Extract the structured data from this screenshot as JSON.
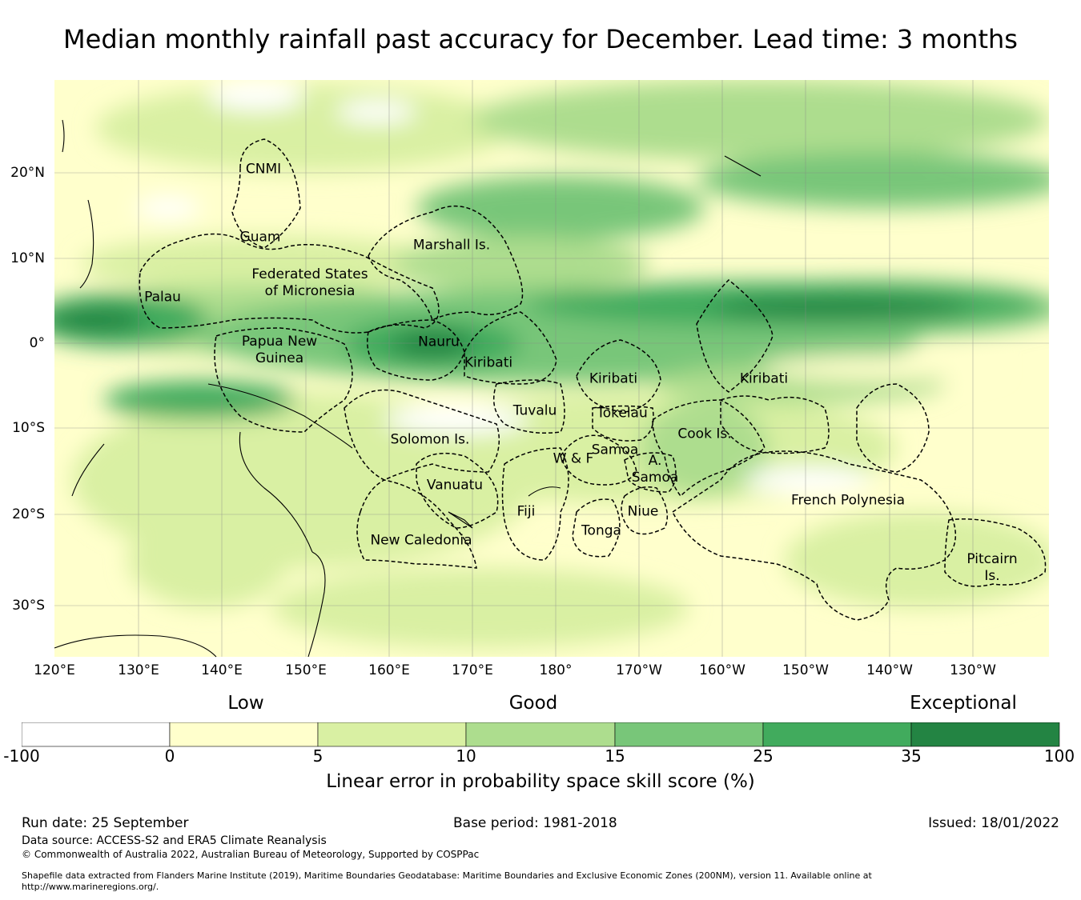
{
  "title": "Median monthly rainfall past accuracy for December. Lead time: 3 months",
  "map": {
    "longitude_labels": [
      "120°E",
      "130°E",
      "140°E",
      "150°E",
      "160°E",
      "170°E",
      "180°",
      "170°W",
      "160°W",
      "150°W",
      "140°W",
      "130°W"
    ],
    "latitude_labels": [
      "20°N",
      "10°N",
      "0°",
      "10°S",
      "20°S",
      "30°S"
    ],
    "regions": [
      {
        "name": "CNMI"
      },
      {
        "name": "Guam"
      },
      {
        "name": "Marshall Is."
      },
      {
        "name": "Federated States of Micronesia"
      },
      {
        "name": "Palau"
      },
      {
        "name": "Papua New Guinea"
      },
      {
        "name": "Nauru"
      },
      {
        "name": "Kiribati"
      },
      {
        "name": "Kiribati"
      },
      {
        "name": "Kiribati"
      },
      {
        "name": "Tuvalu"
      },
      {
        "name": "Tokelau"
      },
      {
        "name": "Solomon Is."
      },
      {
        "name": "Cook Is."
      },
      {
        "name": "Samoa"
      },
      {
        "name": "W & F"
      },
      {
        "name": "A. Samoa"
      },
      {
        "name": "Vanuatu"
      },
      {
        "name": "Fiji"
      },
      {
        "name": "Niue"
      },
      {
        "name": "Tonga"
      },
      {
        "name": "French Polynesia"
      },
      {
        "name": "New Caledonia"
      },
      {
        "name": "Pitcairn Is."
      }
    ]
  },
  "colorbar": {
    "categories": [
      "Low",
      "Good",
      "Exceptional"
    ],
    "ticks": [
      "-100",
      "0",
      "5",
      "10",
      "15",
      "25",
      "35",
      "100"
    ],
    "colors": [
      "#ffffff",
      "#ffffcc",
      "#d9f0a3",
      "#addd8e",
      "#78c679",
      "#41ab5d",
      "#238443"
    ],
    "label": "Linear error in probability space skill score (%)"
  },
  "footer": {
    "run_date": "Run date: 25 September",
    "base_period": "Base period: 1981-2018",
    "issued": "Issued: 18/01/2022",
    "data_source": "Data source: ACCESS-S2 and ERA5 Climate Reanalysis",
    "copyright": "© Commonwealth of Australia 2022, Australian Bureau of Meteorology, Supported by COSPPac",
    "shapefile_line1": "Shapefile data extracted from Flanders Marine Institute (2019), Maritime Boundaries Geodatabase: Maritime Boundaries and Exclusive Economic Zones (200NM), version 11. Available online at",
    "shapefile_line2": "http://www.marineregions.org/."
  }
}
